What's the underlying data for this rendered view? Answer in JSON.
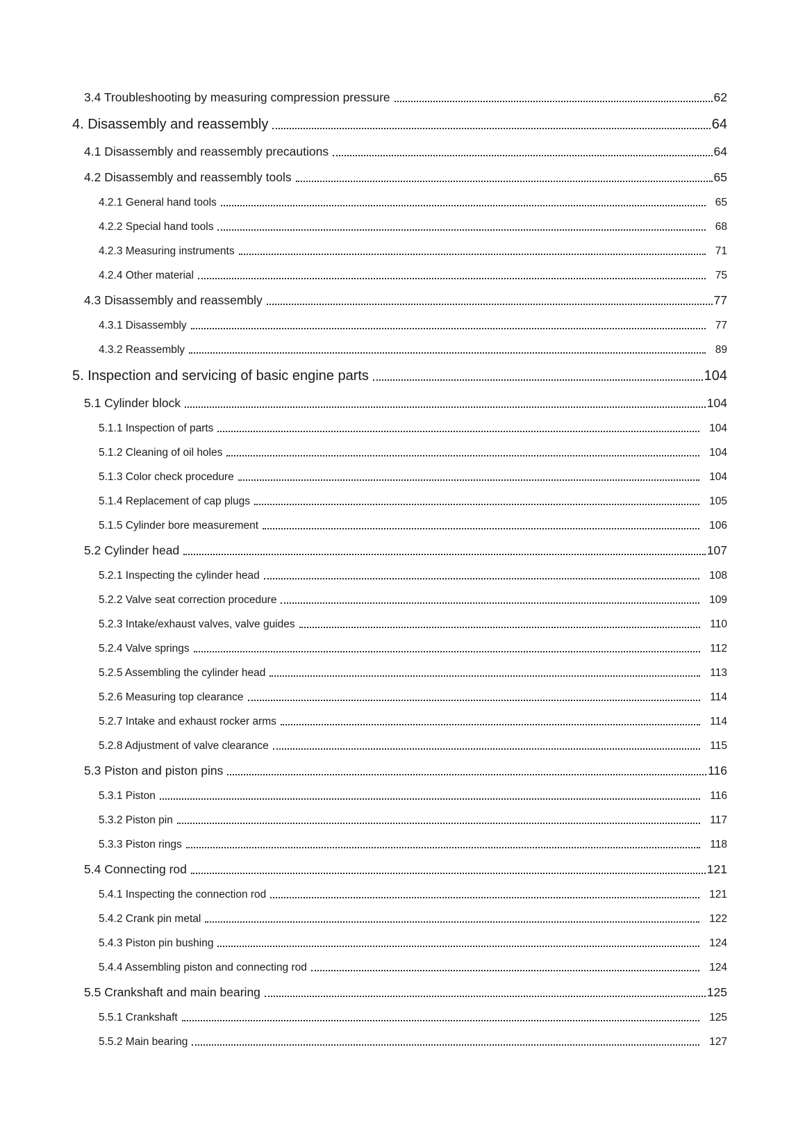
{
  "page": {
    "background": "#ffffff",
    "text_color": "#1a1a1a",
    "leader_dot_color": "#2b2b2b"
  },
  "toc": {
    "entries": [
      {
        "level": 2,
        "label": "3.4 Troubleshooting by measuring compression pressure",
        "page": "62"
      },
      {
        "level": 1,
        "label": "4. Disassembly and reassembly",
        "page": "64"
      },
      {
        "level": 2,
        "label": "4.1 Disassembly and reassembly precautions",
        "page": "64"
      },
      {
        "level": 2,
        "label": "4.2 Disassembly and reassembly tools",
        "page": "65"
      },
      {
        "level": 3,
        "label": "4.2.1 General hand tools",
        "page": "65"
      },
      {
        "level": 3,
        "label": "4.2.2 Special hand tools",
        "page": "68"
      },
      {
        "level": 3,
        "label": "4.2.3 Measuring instruments",
        "page": "71"
      },
      {
        "level": 3,
        "label": "4.2.4 Other material",
        "page": "75"
      },
      {
        "level": 2,
        "label": "4.3 Disassembly and reassembly",
        "page": "77"
      },
      {
        "level": 3,
        "label": "4.3.1 Disassembly",
        "page": "77"
      },
      {
        "level": 3,
        "label": "4.3.2 Reassembly",
        "page": "89"
      },
      {
        "level": 1,
        "label": "5. Inspection and servicing of basic engine parts",
        "page": "104"
      },
      {
        "level": 2,
        "label": "5.1 Cylinder block",
        "page": "104"
      },
      {
        "level": 3,
        "label": "5.1.1 Inspection of parts",
        "page": "104"
      },
      {
        "level": 3,
        "label": "5.1.2 Cleaning of oil holes",
        "page": "104"
      },
      {
        "level": 3,
        "label": "5.1.3 Color check procedure",
        "page": "104"
      },
      {
        "level": 3,
        "label": "5.1.4 Replacement of cap plugs",
        "page": "105"
      },
      {
        "level": 3,
        "label": "5.1.5 Cylinder bore measurement",
        "page": "106"
      },
      {
        "level": 2,
        "label": "5.2 Cylinder head",
        "page": "107"
      },
      {
        "level": 3,
        "label": "5.2.1 Inspecting the cylinder head",
        "page": "108"
      },
      {
        "level": 3,
        "label": "5.2.2 Valve seat correction procedure",
        "page": "109"
      },
      {
        "level": 3,
        "label": "5.2.3 Intake/exhaust valves, valve guides",
        "page": "110"
      },
      {
        "level": 3,
        "label": "5.2.4 Valve springs",
        "page": "112"
      },
      {
        "level": 3,
        "label": "5.2.5 Assembling the cylinder head",
        "page": "113"
      },
      {
        "level": 3,
        "label": "5.2.6 Measuring top clearance",
        "page": "114"
      },
      {
        "level": 3,
        "label": "5.2.7 Intake and exhaust rocker arms",
        "page": "114"
      },
      {
        "level": 3,
        "label": "5.2.8 Adjustment of valve clearance",
        "page": "115"
      },
      {
        "level": 2,
        "label": "5.3 Piston and piston pins",
        "page": "116"
      },
      {
        "level": 3,
        "label": "5.3.1 Piston",
        "page": "116"
      },
      {
        "level": 3,
        "label": "5.3.2 Piston pin",
        "page": "117"
      },
      {
        "level": 3,
        "label": "5.3.3 Piston rings",
        "page": "118"
      },
      {
        "level": 2,
        "label": "5.4 Connecting rod",
        "page": "121"
      },
      {
        "level": 3,
        "label": "5.4.1 Inspecting the connection rod",
        "page": "121"
      },
      {
        "level": 3,
        "label": "5.4.2 Crank pin metal",
        "page": "122"
      },
      {
        "level": 3,
        "label": "5.4.3 Piston pin bushing",
        "page": "124"
      },
      {
        "level": 3,
        "label": "5.4.4 Assembling piston and connecting rod",
        "page": "124"
      },
      {
        "level": 2,
        "label": "5.5 Crankshaft and main bearing",
        "page": "125"
      },
      {
        "level": 3,
        "label": "5.5.1 Crankshaft",
        "page": "125"
      },
      {
        "level": 3,
        "label": "5.5.2 Main bearing",
        "page": "127"
      }
    ]
  }
}
